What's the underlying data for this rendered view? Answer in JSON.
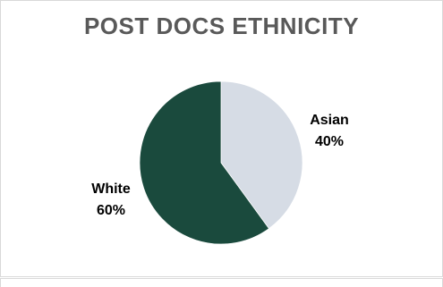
{
  "chart_data": {
    "type": "pie",
    "title": "POST DOCS ETHNICITY",
    "slices": [
      {
        "label": "Asian",
        "value": 40,
        "value_label": "40%",
        "color": "#d6dce5"
      },
      {
        "label": "White",
        "value": 60,
        "value_label": "60%",
        "color": "#1a4a3d"
      }
    ],
    "start_angle_deg": 0,
    "direction": "clockwise",
    "legend": "none",
    "data_labels": "outside"
  }
}
